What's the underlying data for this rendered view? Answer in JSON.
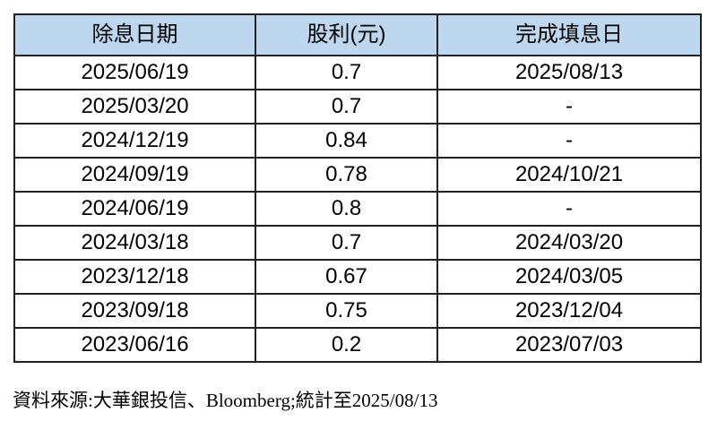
{
  "chart_data": {
    "type": "table",
    "title": "",
    "columns": [
      "除息日期",
      "股利(元)",
      "完成填息日"
    ],
    "rows": [
      [
        "2025/06/19",
        "0.7",
        "2025/08/13"
      ],
      [
        "2025/03/20",
        "0.7",
        "-"
      ],
      [
        "2024/12/19",
        "0.84",
        "-"
      ],
      [
        "2024/09/19",
        "0.78",
        "2024/10/21"
      ],
      [
        "2024/06/19",
        "0.8",
        "-"
      ],
      [
        "2024/03/18",
        "0.7",
        "2024/03/20"
      ],
      [
        "2023/12/18",
        "0.67",
        "2024/03/05"
      ],
      [
        "2023/09/18",
        "0.75",
        "2023/12/04"
      ],
      [
        "2023/06/16",
        "0.2",
        "2023/07/03"
      ]
    ],
    "source_note": "資料來源:大華銀投信、Bloomberg;統計至2025/08/13"
  },
  "colors": {
    "header_bg": "#BDD7EE",
    "border": "#212121",
    "text": "#000000"
  }
}
